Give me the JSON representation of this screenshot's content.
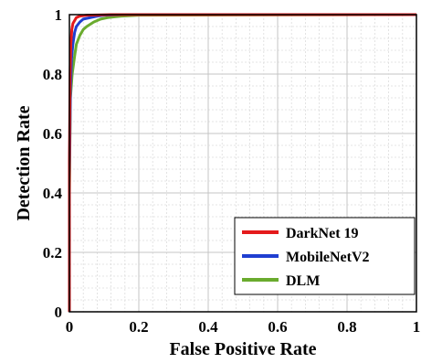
{
  "chart_data": {
    "type": "line",
    "title": "",
    "xlabel": "False Positive Rate",
    "ylabel": "Detection Rate",
    "xlim": [
      0,
      1
    ],
    "ylim": [
      0,
      1
    ],
    "grid": true,
    "minor_grid": true,
    "legend_position": "bottom-right",
    "x_ticks": [
      "0",
      "0.2",
      "0.4",
      "0.6",
      "0.8",
      "1"
    ],
    "y_ticks": [
      "0",
      "0.2",
      "0.4",
      "0.6",
      "0.8",
      "1"
    ],
    "series": [
      {
        "name": "DarkNet 19",
        "color": "#e41a1c",
        "x": [
          0,
          0,
          0.002,
          0.004,
          0.007,
          0.01,
          0.015,
          0.02,
          0.03,
          0.05,
          0.08,
          0.12,
          0.2,
          1
        ],
        "y": [
          0,
          0.5,
          0.8,
          0.9,
          0.95,
          0.97,
          0.98,
          0.99,
          0.995,
          0.998,
          0.999,
          1,
          1,
          1
        ]
      },
      {
        "name": "MobileNetV2",
        "color": "#1f3fd1",
        "x": [
          0,
          0,
          0.003,
          0.006,
          0.01,
          0.015,
          0.02,
          0.03,
          0.04,
          0.06,
          0.08,
          0.1,
          0.15,
          1
        ],
        "y": [
          0,
          0.45,
          0.75,
          0.85,
          0.9,
          0.94,
          0.96,
          0.975,
          0.985,
          0.99,
          0.995,
          0.998,
          1,
          1
        ]
      },
      {
        "name": "DLM",
        "color": "#6aab2e",
        "x": [
          0,
          0,
          0.003,
          0.008,
          0.015,
          0.02,
          0.03,
          0.04,
          0.05,
          0.07,
          0.09,
          0.11,
          0.15,
          0.2,
          1
        ],
        "y": [
          0,
          0.4,
          0.72,
          0.8,
          0.86,
          0.9,
          0.93,
          0.95,
          0.96,
          0.975,
          0.985,
          0.99,
          0.995,
          0.998,
          1
        ]
      }
    ]
  }
}
